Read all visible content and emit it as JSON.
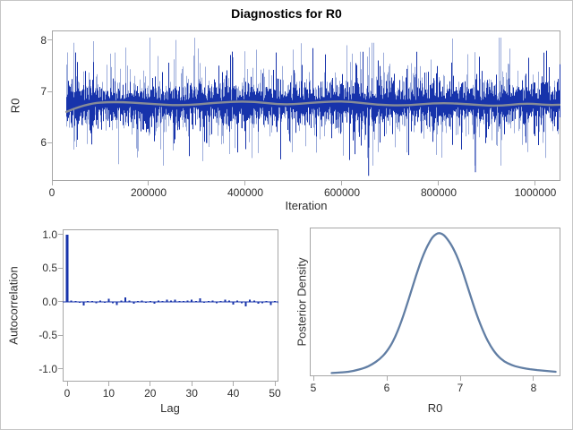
{
  "title": "Diagnostics for R0",
  "colors": {
    "trace_blue": "#1733ab",
    "trace_light_blue": "#7b90cf",
    "smoother_gray": "#8d9196",
    "density_blue": "#617ea4",
    "frame_gray": "#a6a6a6",
    "tick_gray": "#ababab",
    "text_dark": "#2f2f2f",
    "title_black": "#000000",
    "background": "#ffffff",
    "border_gray": "#c6c6c6"
  },
  "chart_data": [
    {
      "type": "line",
      "name": "trace-plot",
      "xlabel": "Iteration",
      "ylabel": "R0",
      "x_ticks": [
        0,
        200000,
        400000,
        600000,
        800000,
        1000000
      ],
      "y_ticks": [
        6,
        7,
        8
      ],
      "xlim": [
        0,
        1051852
      ],
      "ylim": [
        5.25,
        8.19
      ],
      "start_iteration": 30000,
      "end_iteration": 1050000,
      "mean": 6.76,
      "typical_band": 0.3,
      "max": 8.05,
      "min": 5.35,
      "noise_seed": 987123,
      "deep_dips": [
        {
          "x": 655000,
          "y": 5.35
        },
        {
          "x": 876000,
          "y": 5.42
        }
      ],
      "smoother": {
        "x": [
          30000,
          70000,
          130000,
          200000,
          270000,
          340000,
          410000,
          480000,
          550000,
          610000,
          670000,
          730000,
          800000,
          860000,
          920000,
          980000,
          1030000,
          1050000
        ],
        "y": [
          6.6,
          6.76,
          6.8,
          6.76,
          6.72,
          6.78,
          6.81,
          6.73,
          6.79,
          6.81,
          6.74,
          6.72,
          6.78,
          6.75,
          6.71,
          6.77,
          6.73,
          6.74
        ]
      }
    },
    {
      "type": "bar",
      "name": "autocorrelation-plot",
      "xlabel": "Lag",
      "ylabel": "Autocorrelation",
      "x_ticks": [
        0,
        10,
        20,
        30,
        40,
        50
      ],
      "y_ticks": [
        1.0,
        0.5,
        0.0,
        -0.5,
        -1.0
      ],
      "y_tick_format": "fixed1",
      "xlim": [
        -1.08,
        50.86
      ],
      "ylim": [
        -1.187,
        1.08
      ],
      "lags_start": 0,
      "values": [
        1.0,
        0.02,
        0.015,
        -0.01,
        -0.055,
        0.01,
        0.015,
        -0.02,
        0.02,
        -0.015,
        0.045,
        -0.02,
        -0.045,
        0.02,
        0.065,
        0.02,
        -0.03,
        0.015,
        0.02,
        -0.015,
        0.01,
        -0.03,
        0.02,
        0.015,
        0.03,
        0.02,
        0.03,
        0.015,
        0.01,
        0.02,
        0.03,
        0.01,
        0.055,
        -0.01,
        0.015,
        0.02,
        -0.02,
        0.01,
        0.03,
        0.02,
        -0.04,
        0.02,
        -0.02,
        -0.065,
        0.03,
        0.02,
        -0.03,
        -0.02,
        0.01,
        -0.05,
        0.01,
        -0.02
      ]
    },
    {
      "type": "line",
      "name": "posterior-density-plot",
      "xlabel": "R0",
      "ylabel": "Posterior Density",
      "x_ticks": [
        5,
        6,
        7,
        8
      ],
      "y_ticks": [],
      "xlim": [
        4.951,
        8.366
      ],
      "y_normalized": true,
      "x": [
        5.25,
        5.4,
        5.55,
        5.7,
        5.8,
        5.9,
        6.0,
        6.1,
        6.2,
        6.3,
        6.4,
        6.5,
        6.6,
        6.65,
        6.7,
        6.75,
        6.8,
        6.9,
        7.0,
        7.1,
        7.2,
        7.3,
        7.4,
        7.5,
        7.6,
        7.7,
        7.8,
        7.9,
        8.0,
        8.1,
        8.2,
        8.3
      ],
      "density": [
        0.004,
        0.008,
        0.018,
        0.04,
        0.065,
        0.1,
        0.155,
        0.24,
        0.37,
        0.53,
        0.7,
        0.85,
        0.955,
        0.985,
        1.0,
        0.995,
        0.975,
        0.9,
        0.78,
        0.62,
        0.455,
        0.315,
        0.205,
        0.13,
        0.085,
        0.06,
        0.045,
        0.035,
        0.028,
        0.022,
        0.017,
        0.013
      ]
    }
  ]
}
